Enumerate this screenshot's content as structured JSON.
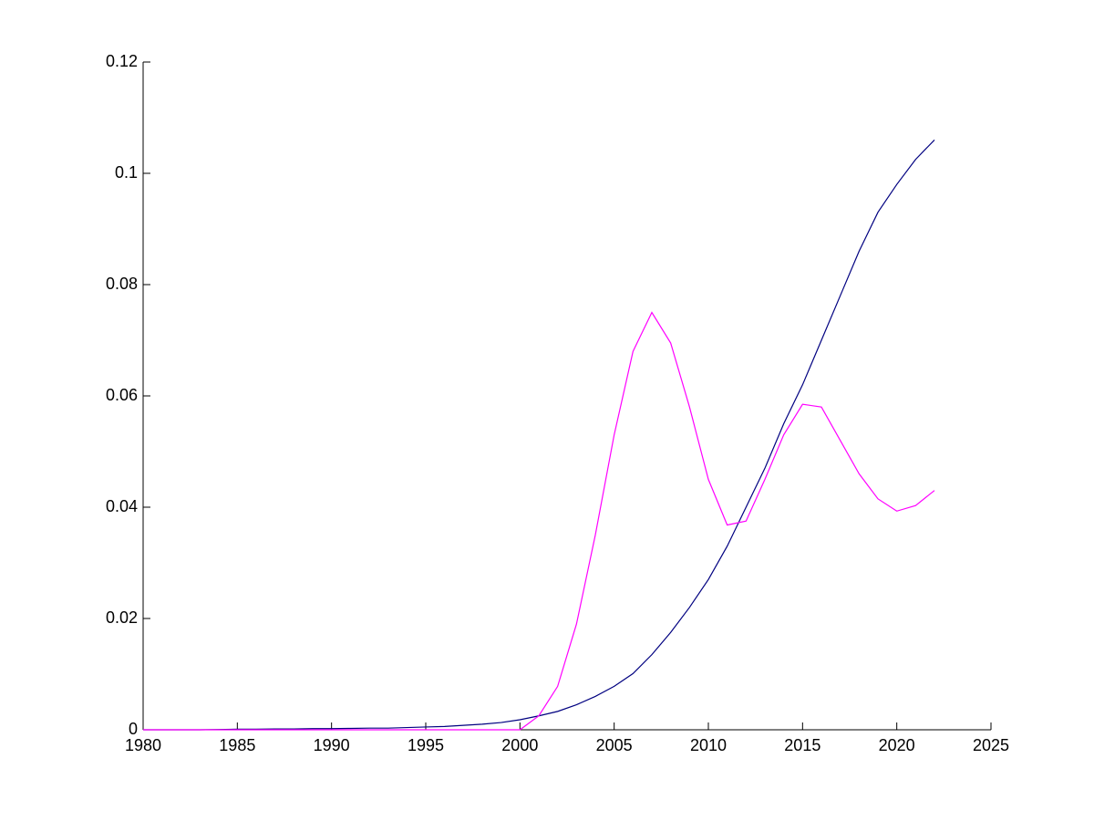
{
  "chart_data": {
    "type": "line",
    "x": [
      1980,
      1981,
      1982,
      1983,
      1984,
      1985,
      1986,
      1987,
      1988,
      1989,
      1990,
      1991,
      1992,
      1993,
      1994,
      1995,
      1996,
      1997,
      1998,
      1999,
      2000,
      2001,
      2002,
      2003,
      2004,
      2005,
      2006,
      2007,
      2008,
      2009,
      2010,
      2011,
      2012,
      2013,
      2014,
      2015,
      2016,
      2017,
      2018,
      2019,
      2020,
      2021,
      2022
    ],
    "series": [
      {
        "color": "#000080",
        "values": [
          0,
          0,
          0,
          0,
          5e-05,
          0.0001,
          0.0001,
          0.00015,
          0.00015,
          0.0002,
          0.0002,
          0.00025,
          0.0003,
          0.0003,
          0.0004,
          0.0005,
          0.0006,
          0.0008,
          0.001,
          0.0013,
          0.0018,
          0.0025,
          0.0033,
          0.0045,
          0.006,
          0.0078,
          0.0101,
          0.0135,
          0.0175,
          0.022,
          0.027,
          0.033,
          0.04,
          0.047,
          0.055,
          0.062,
          0.07,
          0.078,
          0.086,
          0.093,
          0.098,
          0.1025,
          0.106
        ]
      },
      {
        "color": "#ff00ff",
        "values": [
          0,
          0,
          0,
          0,
          0,
          0,
          0,
          0,
          0,
          0,
          0,
          0,
          0,
          0,
          0,
          0,
          0,
          0,
          0,
          0,
          0,
          0.0025,
          0.0078,
          0.019,
          0.035,
          0.053,
          0.068,
          0.075,
          0.0695,
          0.058,
          0.045,
          0.0368,
          0.0375,
          0.045,
          0.053,
          0.0585,
          0.058,
          0.052,
          0.046,
          0.0415,
          0.0393,
          0.0403,
          0.043
        ]
      }
    ],
    "xlim": [
      1980,
      2025
    ],
    "xticks": [
      1980,
      1985,
      1990,
      1995,
      2000,
      2005,
      2010,
      2015,
      2020,
      2025
    ],
    "ylim": [
      0,
      0.12
    ],
    "yticks": [
      0,
      0.02,
      0.04,
      0.06,
      0.08,
      0.1,
      0.12
    ]
  }
}
